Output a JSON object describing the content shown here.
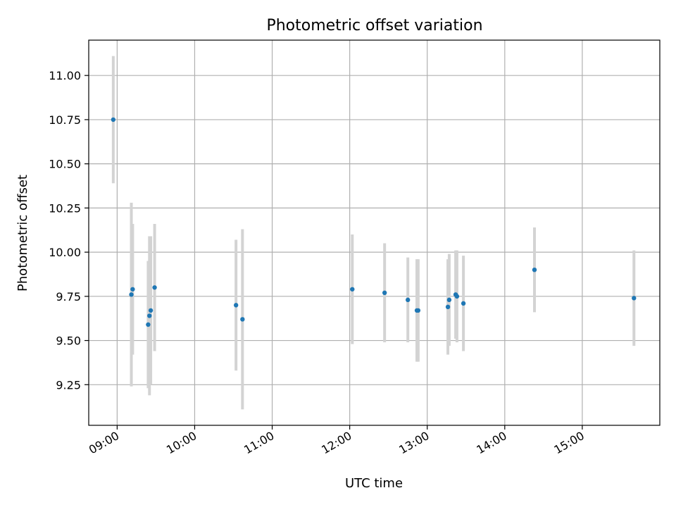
{
  "chart_data": {
    "type": "scatter",
    "title": "Photometric offset variation",
    "xlabel": "UTC time",
    "ylabel": "Photometric offset",
    "grid": true,
    "xlim": [
      "08:38",
      "16:00"
    ],
    "ylim": [
      9.02,
      11.2
    ],
    "x_ticks": [
      "09:00",
      "10:00",
      "11:00",
      "12:00",
      "13:00",
      "14:00",
      "15:00"
    ],
    "y_ticks": [
      "9.25",
      "9.50",
      "9.75",
      "10.00",
      "10.25",
      "10.50",
      "10.75",
      "11.00"
    ],
    "colors": {
      "points": "#1f77b4",
      "error_bars": "#d3d3d3"
    },
    "points": [
      {
        "x": "08:57",
        "y": 10.75,
        "err": 0.36
      },
      {
        "x": "09:11",
        "y": 9.76,
        "err": 0.52
      },
      {
        "x": "09:12",
        "y": 9.79,
        "err": 0.37
      },
      {
        "x": "09:24",
        "y": 9.59,
        "err": 0.36
      },
      {
        "x": "09:25",
        "y": 9.64,
        "err": 0.45
      },
      {
        "x": "09:26",
        "y": 9.67,
        "err": 0.42
      },
      {
        "x": "09:29",
        "y": 9.8,
        "err": 0.36
      },
      {
        "x": "10:32",
        "y": 9.7,
        "err": 0.37
      },
      {
        "x": "10:37",
        "y": 9.62,
        "err": 0.51
      },
      {
        "x": "12:02",
        "y": 9.79,
        "err": 0.31
      },
      {
        "x": "12:27",
        "y": 9.77,
        "err": 0.28
      },
      {
        "x": "12:45",
        "y": 9.73,
        "err": 0.24
      },
      {
        "x": "12:52",
        "y": 9.67,
        "err": 0.29
      },
      {
        "x": "12:53",
        "y": 9.67,
        "err": 0.29
      },
      {
        "x": "13:16",
        "y": 9.69,
        "err": 0.27
      },
      {
        "x": "13:17",
        "y": 9.73,
        "err": 0.26
      },
      {
        "x": "13:22",
        "y": 9.76,
        "err": 0.25
      },
      {
        "x": "13:23",
        "y": 9.75,
        "err": 0.26
      },
      {
        "x": "13:28",
        "y": 9.71,
        "err": 0.27
      },
      {
        "x": "14:23",
        "y": 9.9,
        "err": 0.24
      },
      {
        "x": "15:40",
        "y": 9.74,
        "err": 0.27
      }
    ]
  }
}
